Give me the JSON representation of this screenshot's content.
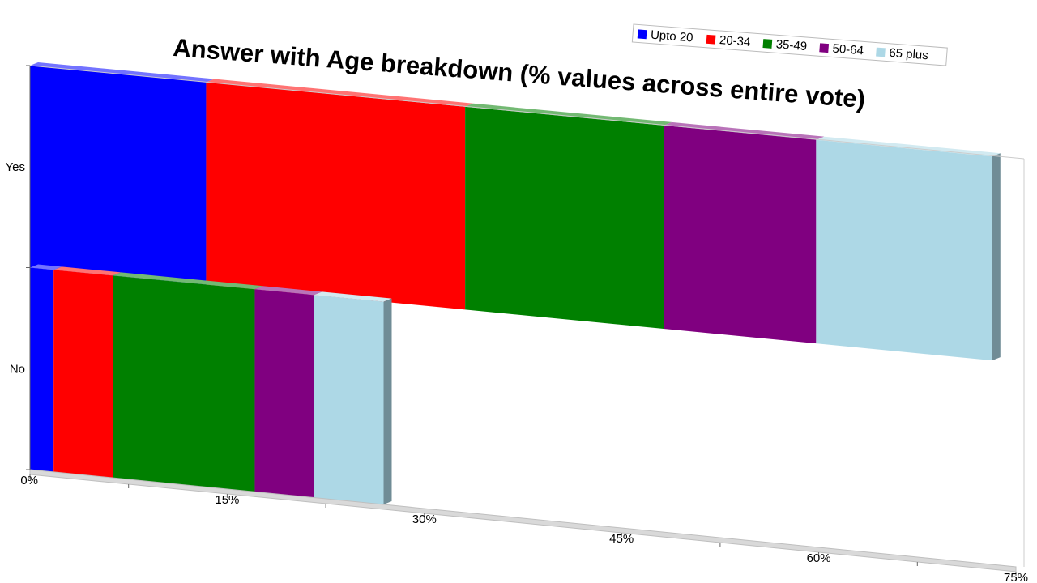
{
  "chart_data": {
    "type": "bar",
    "orientation": "horizontal",
    "stacked": true,
    "three_d": true,
    "title": "Answer with Age breakdown (% values across entire vote)",
    "categories": [
      "Yes",
      "No"
    ],
    "series": [
      {
        "name": "Upto 20",
        "color": "#0000ff",
        "values": [
          13.4,
          1.8
        ]
      },
      {
        "name": "20-34",
        "color": "#ff0000",
        "values": [
          19.7,
          4.5
        ]
      },
      {
        "name": "35-49",
        "color": "#008000",
        "values": [
          15.1,
          10.8
        ]
      },
      {
        "name": "50-64",
        "color": "#800080",
        "values": [
          11.6,
          4.5
        ]
      },
      {
        "name": "65 plus",
        "color": "#add8e6",
        "values": [
          13.4,
          5.3
        ]
      }
    ],
    "x_ticks": [
      "0%",
      "15%",
      "30%",
      "45%",
      "60%",
      "75%"
    ],
    "xlim": [
      0,
      75
    ],
    "xlabel": "",
    "ylabel": "",
    "grid": false,
    "legend_position": "top-right"
  }
}
